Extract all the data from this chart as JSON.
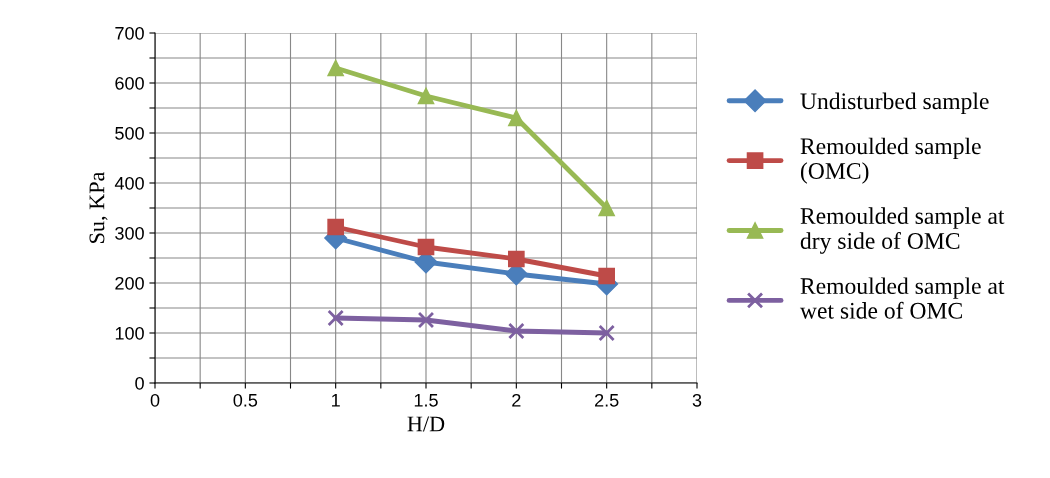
{
  "chart_data": {
    "type": "line",
    "xlabel": "H/D",
    "ylabel": "Su, KPa",
    "x": [
      1,
      1.5,
      2,
      2.5
    ],
    "series": [
      {
        "name": "Undisturbed sample",
        "color": "#4a7ebb",
        "values": [
          290,
          242,
          218,
          198
        ],
        "marker": "diamond"
      },
      {
        "name": "Remoulded sample\n(OMC)",
        "color": "#be4b48",
        "values": [
          312,
          272,
          248,
          214
        ],
        "marker": "square"
      },
      {
        "name": "Remoulded sample at\ndry side of OMC",
        "color": "#98b954",
        "values": [
          630,
          574,
          530,
          350
        ],
        "marker": "triangle"
      },
      {
        "name": "Remoulded sample at\nwet side of OMC",
        "color": "#7d60a0",
        "values": [
          130,
          126,
          104,
          100
        ],
        "marker": "cross"
      }
    ],
    "xlim": [
      0,
      3
    ],
    "xticks": [
      0,
      {
        "value": 0.25,
        "label": null
      },
      0.5,
      {
        "value": 0.75,
        "label": null
      },
      1,
      {
        "value": 1.25,
        "label": null
      },
      1.5,
      {
        "value": 1.75,
        "label": null
      },
      2,
      {
        "value": 2.25,
        "label": null
      },
      2.5,
      {
        "value": 2.75,
        "label": null
      },
      3
    ],
    "ylim": [
      0,
      700
    ],
    "yticks": [
      0,
      {
        "value": 50,
        "label": null
      },
      100,
      {
        "value": 150,
        "label": null
      },
      200,
      {
        "value": 250,
        "label": null
      },
      300,
      {
        "value": 350,
        "label": null
      },
      400,
      {
        "value": 450,
        "label": null
      },
      500,
      {
        "value": 550,
        "label": null
      },
      600,
      {
        "value": 650,
        "label": null
      },
      700
    ],
    "grid": true,
    "legend": "right",
    "line_style": "solid"
  }
}
